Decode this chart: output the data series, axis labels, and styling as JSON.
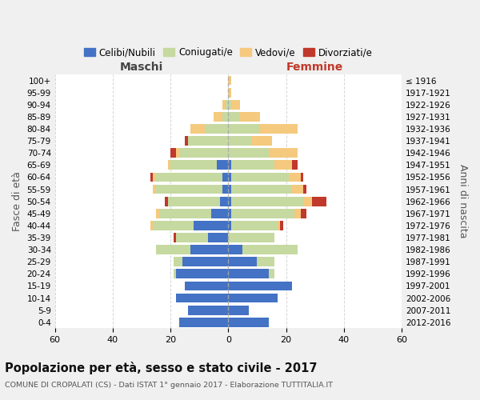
{
  "age_groups": [
    "0-4",
    "5-9",
    "10-14",
    "15-19",
    "20-24",
    "25-29",
    "30-34",
    "35-39",
    "40-44",
    "45-49",
    "50-54",
    "55-59",
    "60-64",
    "65-69",
    "70-74",
    "75-79",
    "80-84",
    "85-89",
    "90-94",
    "95-99",
    "100+"
  ],
  "birth_years": [
    "2012-2016",
    "2007-2011",
    "2002-2006",
    "1997-2001",
    "1992-1996",
    "1987-1991",
    "1982-1986",
    "1977-1981",
    "1972-1976",
    "1967-1971",
    "1962-1966",
    "1957-1961",
    "1952-1956",
    "1947-1951",
    "1942-1946",
    "1937-1941",
    "1932-1936",
    "1927-1931",
    "1922-1926",
    "1917-1921",
    "≤ 1916"
  ],
  "males": {
    "celibi": [
      17,
      14,
      18,
      15,
      18,
      16,
      13,
      7,
      12,
      6,
      3,
      2,
      2,
      4,
      0,
      0,
      0,
      0,
      0,
      0,
      0
    ],
    "coniugati": [
      0,
      0,
      0,
      0,
      1,
      3,
      12,
      11,
      14,
      18,
      18,
      23,
      23,
      16,
      17,
      14,
      8,
      2,
      1,
      0,
      0
    ],
    "vedovi": [
      0,
      0,
      0,
      0,
      0,
      0,
      0,
      0,
      1,
      1,
      0,
      1,
      1,
      1,
      1,
      0,
      5,
      3,
      1,
      0,
      0
    ],
    "divorziati": [
      0,
      0,
      0,
      0,
      0,
      0,
      0,
      1,
      0,
      0,
      1,
      0,
      1,
      0,
      2,
      1,
      0,
      0,
      0,
      0,
      0
    ]
  },
  "females": {
    "nubili": [
      14,
      7,
      17,
      22,
      14,
      10,
      5,
      0,
      1,
      1,
      1,
      1,
      1,
      1,
      0,
      0,
      0,
      0,
      0,
      0,
      0
    ],
    "coniugate": [
      0,
      0,
      0,
      0,
      2,
      6,
      19,
      16,
      16,
      22,
      25,
      21,
      20,
      15,
      14,
      8,
      11,
      4,
      1,
      0,
      0
    ],
    "vedove": [
      0,
      0,
      0,
      0,
      0,
      0,
      0,
      0,
      1,
      2,
      3,
      4,
      4,
      6,
      10,
      7,
      13,
      7,
      3,
      1,
      1
    ],
    "divorziate": [
      0,
      0,
      0,
      0,
      0,
      0,
      0,
      0,
      1,
      2,
      5,
      1,
      1,
      2,
      0,
      0,
      0,
      0,
      0,
      0,
      0
    ]
  },
  "color_celibi": "#4472c4",
  "color_coniugati": "#c5d9a0",
  "color_vedovi": "#f5c97e",
  "color_divorziati": "#c0392b",
  "title": "Popolazione per età, sesso e stato civile - 2017",
  "subtitle": "COMUNE DI CROPALATI (CS) - Dati ISTAT 1° gennaio 2017 - Elaborazione TUTTITALIA.IT",
  "xlabel_left": "Maschi",
  "xlabel_right": "Femmine",
  "ylabel_left": "Fasce di età",
  "ylabel_right": "Anni di nascita",
  "xlim": 60,
  "legend_labels": [
    "Celibi/Nubili",
    "Coniugati/e",
    "Vedovi/e",
    "Divorziati/e"
  ],
  "bg_color": "#f0f0f0",
  "plot_bg_color": "#ffffff",
  "maschi_color": "#444444",
  "femmine_color": "#c0392b"
}
